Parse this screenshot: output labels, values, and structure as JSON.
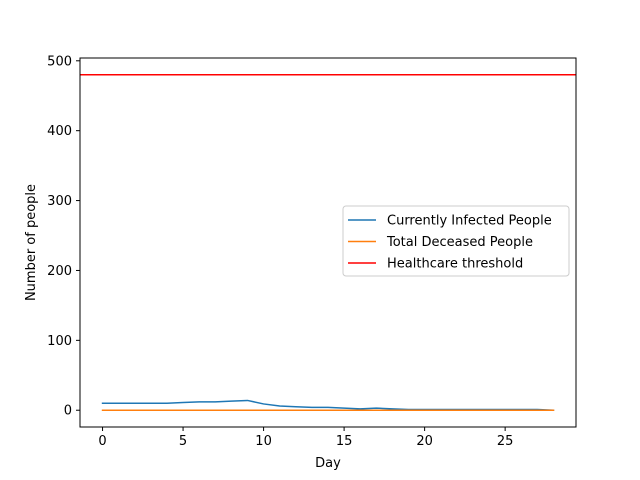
{
  "chart_data": {
    "type": "line",
    "title": "",
    "xlabel": "Day",
    "ylabel": "Number of people",
    "xlim": [
      -1.4,
      29.4
    ],
    "ylim": [
      -24,
      504
    ],
    "xticks": [
      0,
      5,
      10,
      15,
      20,
      25
    ],
    "yticks": [
      0,
      100,
      200,
      300,
      400,
      500
    ],
    "legend_location": "center-right",
    "grid": false,
    "series": [
      {
        "name": "Currently Infected People",
        "color": "#1f77b4",
        "x": [
          0,
          1,
          2,
          3,
          4,
          5,
          6,
          7,
          8,
          9,
          10,
          11,
          12,
          13,
          14,
          15,
          16,
          17,
          18,
          19,
          20,
          21,
          22,
          23,
          24,
          25,
          26,
          27,
          28
        ],
        "y": [
          10,
          10,
          10,
          10,
          10,
          11,
          12,
          12,
          13,
          14,
          9,
          6,
          5,
          4,
          4,
          3,
          2,
          3,
          2,
          1,
          1,
          1,
          1,
          1,
          1,
          1,
          1,
          1,
          0
        ]
      },
      {
        "name": "Total Deceased People",
        "color": "#ff7f0e",
        "x": [
          0,
          1,
          2,
          3,
          4,
          5,
          6,
          7,
          8,
          9,
          10,
          11,
          12,
          13,
          14,
          15,
          16,
          17,
          18,
          19,
          20,
          21,
          22,
          23,
          24,
          25,
          26,
          27,
          28
        ],
        "y": [
          0,
          0,
          0,
          0,
          0,
          0,
          0,
          0,
          0,
          0,
          0,
          0,
          0,
          0,
          0,
          0,
          0,
          0,
          0,
          0,
          0,
          0,
          0,
          0,
          0,
          0,
          0,
          0,
          0
        ]
      },
      {
        "name": "Healthcare threshold",
        "color": "#ff0000",
        "x": [
          -1.4,
          29.4
        ],
        "y": [
          480,
          480
        ]
      }
    ]
  }
}
